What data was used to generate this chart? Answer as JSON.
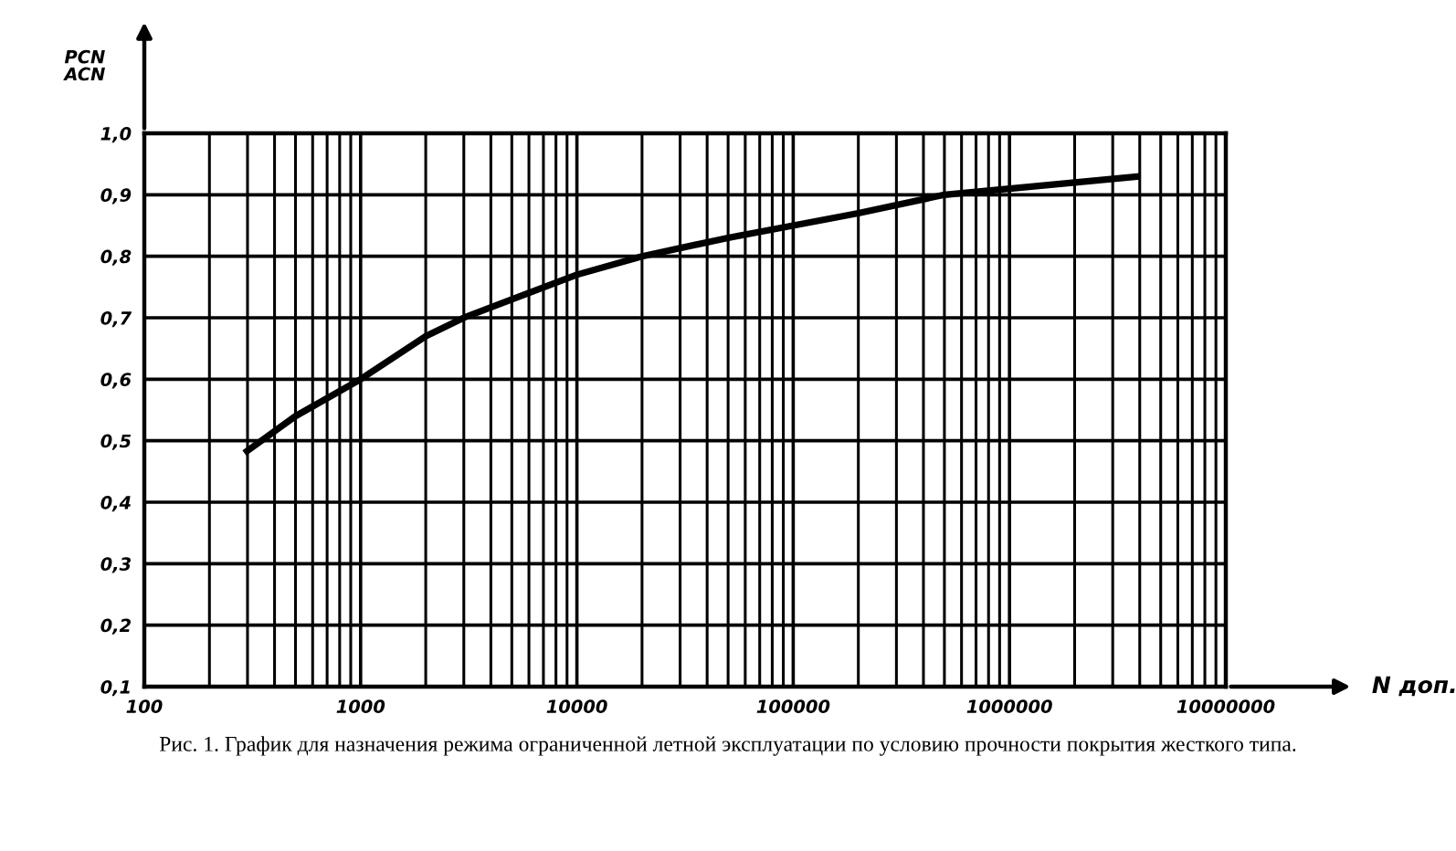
{
  "chart_data": {
    "type": "line",
    "ylabel": "PCN\nACN",
    "xlabel": "N доп.",
    "annotations": [
      "Рис. 1. График для назначения режима ограниченной летной эксплуатации по условию прочности покрытия жесткого типа."
    ],
    "x": [
      290,
      500,
      1000,
      2000,
      3000,
      5000,
      10000,
      20000,
      50000,
      100000,
      200000,
      500000,
      1000000,
      2000000,
      4000000
    ],
    "series": [
      {
        "color": "#000000",
        "values": [
          0.48,
          0.54,
          0.6,
          0.67,
          0.7,
          0.73,
          0.77,
          0.8,
          0.83,
          0.85,
          0.87,
          0.9,
          0.91,
          0.92,
          0.93
        ]
      }
    ],
    "log": "x",
    "xlim": [
      100,
      10000000
    ],
    "xticks": [
      100,
      1000,
      10000,
      100000,
      1000000,
      10000000
    ],
    "ylim": [
      0.1,
      1.0
    ],
    "yticks": [
      {
        "value": 0.1,
        "label": "0,1"
      },
      {
        "value": 0.2,
        "label": "0,2"
      },
      {
        "value": 0.3,
        "label": "0,3"
      },
      {
        "value": 0.4,
        "label": "0,4"
      },
      {
        "value": 0.5,
        "label": "0,5"
      },
      {
        "value": 0.6,
        "label": "0,6"
      },
      {
        "value": 0.7,
        "label": "0,7"
      },
      {
        "value": 0.8,
        "label": "0,8"
      },
      {
        "value": 0.9,
        "label": "0,9"
      },
      {
        "value": 1.0,
        "label": "1,0"
      }
    ],
    "grid": true
  }
}
